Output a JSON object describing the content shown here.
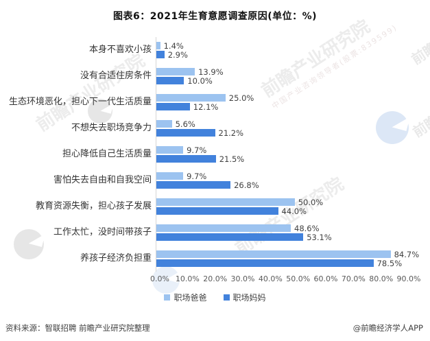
{
  "chart_data": {
    "type": "bar",
    "orientation": "horizontal",
    "title": "图表6：2021年生育意愿调查原因(单位：%)",
    "unit": "%",
    "categories": [
      "本身不喜欢小孩",
      "没有合适住房条件",
      "生态环境恶化，担心下一代生活质量",
      "不想失去职场竞争力",
      "担心降低自己生活质量",
      "害怕失去自由和自我空间",
      "教育资源失衡，担心孩子发展",
      "工作太忙，没时间带孩子",
      "养孩子经济负担重"
    ],
    "series": [
      {
        "name": "职场爸爸",
        "color": "#9CC3F0",
        "values": [
          1.4,
          13.9,
          25.0,
          5.6,
          9.7,
          9.7,
          50.0,
          48.6,
          84.7
        ]
      },
      {
        "name": "职场妈妈",
        "color": "#4282DC",
        "values": [
          2.9,
          10.0,
          12.1,
          21.2,
          21.5,
          26.8,
          44.0,
          53.1,
          78.5
        ]
      }
    ],
    "xlim": [
      0,
      90
    ],
    "x_ticks": [
      "0.0%",
      "10.0%",
      "20.0%",
      "30.0%",
      "40.0%",
      "50.0%",
      "60.0%",
      "70.0%",
      "80.0%",
      "90.0%"
    ],
    "grid": false,
    "legend_position": "bottom",
    "value_labels": "one decimal + %"
  },
  "footer": {
    "source": "资料来源：智联招聘 前瞻产业研究院整理",
    "brand": "@前瞻经济学人APP"
  },
  "watermarks": {
    "main": "前瞻产业研究院",
    "sub": "中国产业咨询领导者(股票:839599)",
    "corner": "前瞻"
  }
}
